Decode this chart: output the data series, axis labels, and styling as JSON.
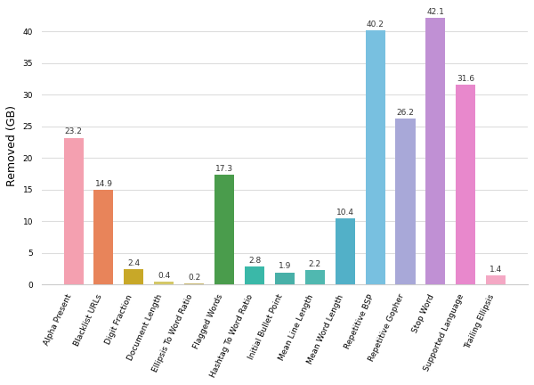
{
  "categories": [
    "Alpha Present",
    "Blacklist URLs",
    "Digit Fraction",
    "Document Length",
    "Ellipsis To Word Ratio",
    "Flagged Words",
    "Hashtag To Word Ratio",
    "Initial Bullet Point",
    "Mean Line Length",
    "Mean Word Length",
    "Repetitive BSP",
    "Repetitive Gopher",
    "Stop Word",
    "Supported Language",
    "Trailing Ellipsis"
  ],
  "values": [
    23.2,
    14.9,
    2.4,
    0.4,
    0.2,
    17.3,
    2.8,
    1.9,
    2.2,
    10.4,
    40.2,
    26.2,
    42.1,
    31.6,
    1.4
  ],
  "colors": [
    "#f4a0b0",
    "#e8845a",
    "#c8a828",
    "#d4c868",
    "#c8b870",
    "#4a9c4c",
    "#3ab8a8",
    "#48b0a8",
    "#50b8b0",
    "#52b0c8",
    "#78c0e0",
    "#a8a8d8",
    "#c090d4",
    "#e888cc",
    "#f4a8c4"
  ],
  "ylabel": "Removed (GB)",
  "ylim": [
    0,
    44
  ],
  "yticks": [
    0,
    5,
    10,
    15,
    20,
    25,
    30,
    35,
    40
  ],
  "bar_width": 0.65,
  "tick_fontsize": 6.5,
  "ylabel_fontsize": 9,
  "value_fontsize": 6.5,
  "background_color": "#ffffff",
  "grid_color": "#dddddd"
}
